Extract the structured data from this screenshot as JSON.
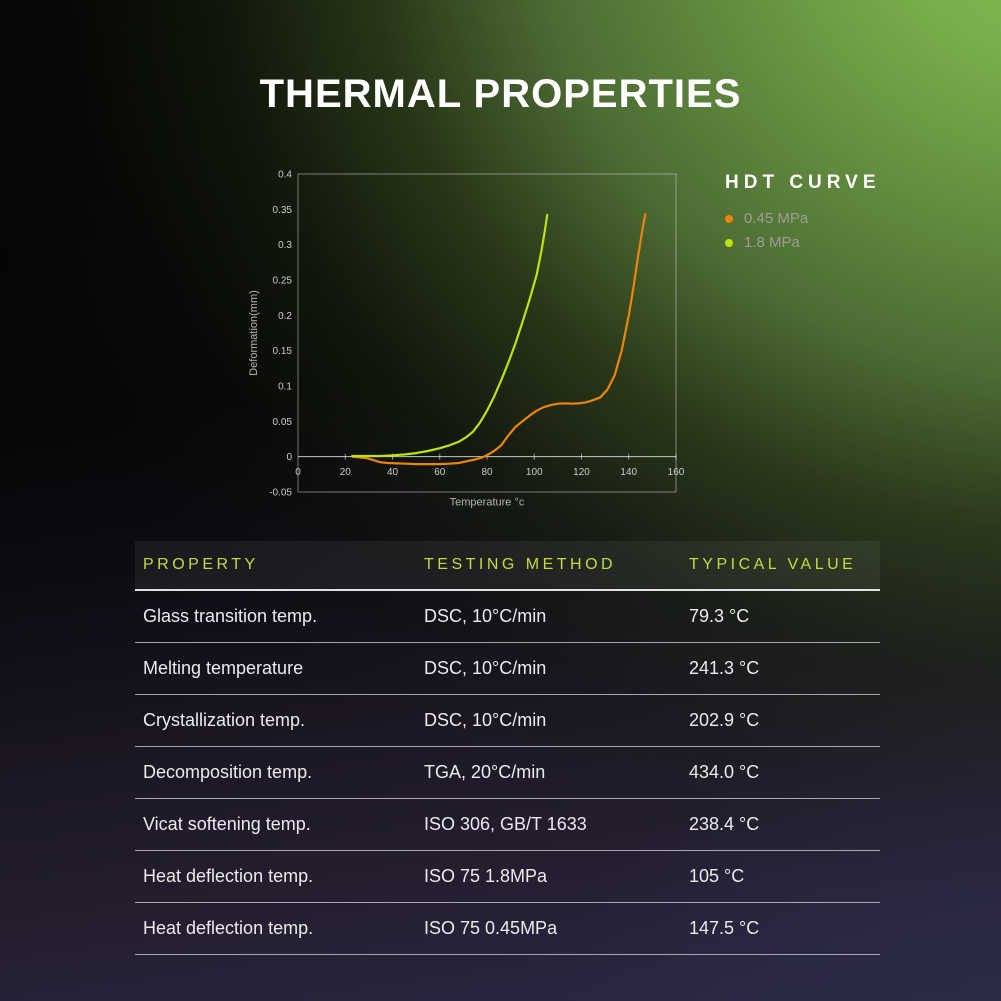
{
  "page": {
    "title": "THERMAL PROPERTIES"
  },
  "legend": {
    "title": "HDT CURVE"
  },
  "chart_data": {
    "type": "line",
    "title": "HDT CURVE",
    "xlabel": "Temperature °c",
    "ylabel": "Deformation(mm)",
    "xlim": [
      0,
      160
    ],
    "ylim": [
      -0.05,
      0.4
    ],
    "x_ticks": [
      0,
      20,
      40,
      60,
      80,
      100,
      120,
      140,
      160
    ],
    "y_ticks": [
      -0.05,
      0,
      0.05,
      0.1,
      0.15,
      0.2,
      0.25,
      0.3,
      0.35,
      0.4
    ],
    "grid": false,
    "legend_position": "right-outside",
    "series": [
      {
        "name": "0.45 MPa",
        "color": "#ee850a",
        "points": [
          [
            23,
            0
          ],
          [
            26,
            -0.001
          ],
          [
            29,
            -0.002
          ],
          [
            32,
            -0.005
          ],
          [
            35,
            -0.008
          ],
          [
            38,
            -0.009
          ],
          [
            42,
            -0.0095
          ],
          [
            46,
            -0.01
          ],
          [
            50,
            -0.0105
          ],
          [
            55,
            -0.0105
          ],
          [
            60,
            -0.0105
          ],
          [
            64,
            -0.01
          ],
          [
            68,
            -0.009
          ],
          [
            72,
            -0.006
          ],
          [
            75,
            -0.004
          ],
          [
            78,
            -0.001
          ],
          [
            80,
            0.002
          ],
          [
            83,
            0.008
          ],
          [
            86,
            0.016
          ],
          [
            89,
            0.03
          ],
          [
            92,
            0.042
          ],
          [
            95,
            0.05
          ],
          [
            98,
            0.058
          ],
          [
            101,
            0.065
          ],
          [
            104,
            0.07
          ],
          [
            107,
            0.073
          ],
          [
            110,
            0.075
          ],
          [
            113,
            0.0755
          ],
          [
            116,
            0.075
          ],
          [
            119,
            0.0755
          ],
          [
            122,
            0.077
          ],
          [
            125,
            0.08
          ],
          [
            128,
            0.084
          ],
          [
            131,
            0.095
          ],
          [
            134,
            0.115
          ],
          [
            137,
            0.15
          ],
          [
            140,
            0.2
          ],
          [
            142,
            0.24
          ],
          [
            144,
            0.285
          ],
          [
            146,
            0.325
          ],
          [
            147,
            0.343
          ]
        ]
      },
      {
        "name": "1.8 MPa",
        "color": "#bce412",
        "points": [
          [
            23,
            0.001
          ],
          [
            30,
            0.001
          ],
          [
            35,
            0.001
          ],
          [
            40,
            0.002
          ],
          [
            45,
            0.003
          ],
          [
            50,
            0.005
          ],
          [
            55,
            0.008
          ],
          [
            60,
            0.012
          ],
          [
            64,
            0.016
          ],
          [
            68,
            0.021
          ],
          [
            71,
            0.027
          ],
          [
            74,
            0.035
          ],
          [
            77,
            0.048
          ],
          [
            80,
            0.065
          ],
          [
            83,
            0.085
          ],
          [
            86,
            0.108
          ],
          [
            89,
            0.133
          ],
          [
            92,
            0.16
          ],
          [
            95,
            0.19
          ],
          [
            98,
            0.222
          ],
          [
            101,
            0.257
          ],
          [
            103,
            0.29
          ],
          [
            104.5,
            0.32
          ],
          [
            105.5,
            0.342
          ]
        ]
      }
    ]
  },
  "table": {
    "headers": [
      "PROPERTY",
      "TESTING METHOD",
      "TYPICAL VALUE"
    ],
    "rows": [
      [
        "Glass transition temp.",
        "DSC, 10°C/min",
        "79.3 °C"
      ],
      [
        "Melting temperature",
        "DSC, 10°C/min",
        "241.3 °C"
      ],
      [
        "Crystallization temp.",
        "DSC, 10°C/min",
        "202.9 °C"
      ],
      [
        "Decomposition temp.",
        "TGA, 20°C/min",
        "434.0 °C"
      ],
      [
        "Vicat softening temp.",
        "ISO 306, GB/T 1633",
        "238.4 °C"
      ],
      [
        "Heat deflection temp.",
        "ISO 75 1.8MPa",
        "105 °C"
      ],
      [
        "Heat deflection temp.",
        "ISO 75 0.45MPa",
        "147.5 °C"
      ]
    ]
  },
  "colors": {
    "accent_header_green": "#c3dc3c",
    "series_045mpa_orange": "#ee850a",
    "series_18mpa_green": "#bce412",
    "background_glow_green": "#7cb14b",
    "background_bottom_left": "#241e2e",
    "background_bottom_right": "#2b2b45",
    "title_white": "#ffffff"
  }
}
